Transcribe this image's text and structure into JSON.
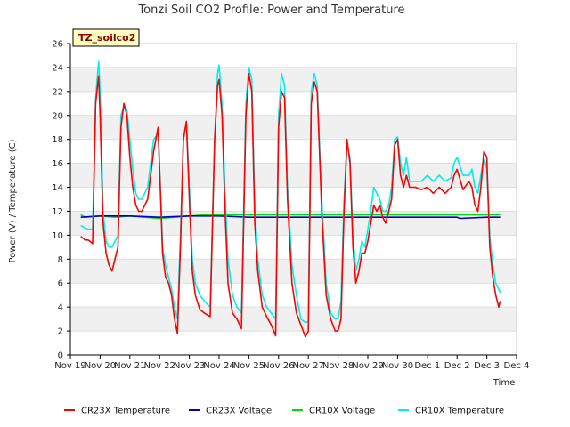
{
  "chart_data": {
    "type": "line",
    "title": "Tonzi Soil CO2 Profile: Power and Temperature",
    "tag": "TZ_soilco2",
    "xlabel": "Time",
    "ylabel": "Power (V) / Temperature (C)",
    "xlim": [
      0,
      15
    ],
    "ylim": [
      0,
      26
    ],
    "x_ticks": [
      "Nov 19",
      "Nov 20",
      "Nov 21",
      "Nov 22",
      "Nov 23",
      "Nov 24",
      "Nov 25",
      "Nov 26",
      "Nov 27",
      "Nov 28",
      "Nov 29",
      "Nov 30",
      "Dec 1",
      "Dec 2",
      "Dec 3",
      "Dec 4"
    ],
    "y_ticks": [
      0,
      2,
      4,
      6,
      8,
      10,
      12,
      14,
      16,
      18,
      20,
      22,
      24,
      26
    ],
    "grid": "horizontal bands",
    "legend_position": "bottom",
    "series": [
      {
        "name": "CR23X Temperature",
        "color": "#ff0000",
        "x": [
          0.35,
          0.5,
          0.6,
          0.75,
          0.85,
          0.95,
          1.0,
          1.1,
          1.2,
          1.3,
          1.4,
          1.5,
          1.6,
          1.7,
          1.8,
          1.9,
          2.0,
          2.1,
          2.2,
          2.3,
          2.4,
          2.6,
          2.8,
          2.95,
          3.05,
          3.1,
          3.2,
          3.3,
          3.4,
          3.5,
          3.6,
          3.7,
          3.8,
          3.9,
          4.0,
          4.1,
          4.2,
          4.35,
          4.5,
          4.7,
          4.85,
          4.95,
          5.0,
          5.1,
          5.2,
          5.3,
          5.45,
          5.6,
          5.75,
          5.9,
          6.0,
          6.1,
          6.2,
          6.3,
          6.45,
          6.6,
          6.75,
          6.9,
          7.0,
          7.1,
          7.2,
          7.3,
          7.45,
          7.6,
          7.75,
          7.9,
          8.0,
          8.1,
          8.2,
          8.3,
          8.45,
          8.6,
          8.75,
          8.9,
          9.0,
          9.1,
          9.2,
          9.3,
          9.4,
          9.5,
          9.6,
          9.7,
          9.8,
          9.9,
          10.0,
          10.1,
          10.2,
          10.3,
          10.4,
          10.5,
          10.6,
          10.7,
          10.8,
          10.9,
          11.0,
          11.1,
          11.2,
          11.3,
          11.4,
          11.5,
          11.6,
          11.8,
          12.0,
          12.2,
          12.4,
          12.6,
          12.8,
          12.9,
          13.0,
          13.2,
          13.4,
          13.5,
          13.6,
          13.7,
          13.8,
          13.9,
          14.0,
          14.1,
          14.2,
          14.3,
          14.4,
          14.45
        ],
        "values": [
          9.9,
          9.6,
          9.6,
          9.3,
          21.0,
          23.3,
          20.0,
          11.0,
          8.5,
          7.5,
          7.0,
          8.0,
          9.0,
          19.0,
          21.0,
          20.0,
          16.5,
          14.0,
          12.5,
          12.0,
          12.0,
          13.0,
          17.0,
          19.0,
          12.0,
          8.5,
          6.5,
          6.0,
          5.0,
          3.0,
          1.8,
          9.0,
          18.0,
          19.5,
          13.0,
          7.0,
          5.0,
          3.8,
          3.5,
          3.2,
          18.0,
          22.5,
          23.0,
          20.0,
          12.0,
          6.0,
          3.5,
          3.0,
          2.2,
          20.0,
          23.5,
          22.0,
          11.0,
          7.0,
          4.0,
          3.2,
          2.5,
          1.6,
          19.0,
          22.0,
          21.5,
          13.0,
          6.0,
          3.5,
          2.5,
          1.5,
          2.0,
          21.0,
          22.8,
          22.0,
          12.0,
          5.0,
          3.0,
          2.0,
          2.0,
          3.0,
          12.0,
          18.0,
          16.0,
          9.0,
          6.0,
          7.0,
          8.5,
          8.5,
          9.5,
          11.0,
          12.5,
          12.0,
          12.5,
          11.5,
          11.0,
          12.0,
          13.0,
          17.5,
          18.0,
          15.0,
          14.0,
          15.0,
          14.0,
          14.0,
          14.0,
          13.8,
          14.0,
          13.5,
          14.0,
          13.5,
          14.0,
          15.0,
          15.5,
          13.8,
          14.5,
          14.0,
          12.5,
          12.0,
          14.0,
          17.0,
          16.5,
          9.0,
          6.5,
          5.0,
          4.0,
          4.5
        ]
      },
      {
        "name": "CR23X Voltage",
        "color": "#0000cc",
        "x": [
          0.35,
          1.0,
          2.0,
          3.0,
          4.0,
          5.0,
          6.0,
          7.0,
          8.0,
          9.0,
          10.0,
          11.0,
          12.0,
          13.0,
          13.1,
          14.0,
          14.45
        ],
        "values": [
          11.5,
          11.6,
          11.6,
          11.5,
          11.6,
          11.6,
          11.5,
          11.5,
          11.5,
          11.5,
          11.5,
          11.5,
          11.5,
          11.5,
          11.4,
          11.5,
          11.5
        ]
      },
      {
        "name": "CR10X Voltage",
        "color": "#00dd00",
        "x": [
          0.35,
          0.5,
          1.0,
          1.5,
          2.0,
          2.5,
          3.0,
          3.5,
          4.0,
          4.5,
          5.0,
          6.0,
          7.0,
          8.0,
          9.0,
          10.0,
          11.0,
          12.0,
          13.0,
          14.0,
          14.45
        ],
        "values": [
          11.7,
          11.5,
          11.6,
          11.5,
          11.6,
          11.5,
          11.4,
          11.5,
          11.6,
          11.7,
          11.7,
          11.7,
          11.7,
          11.7,
          11.7,
          11.7,
          11.7,
          11.7,
          11.7,
          11.7,
          11.7
        ]
      },
      {
        "name": "CR10X Temperature",
        "color": "#00eeee",
        "x": [
          0.35,
          0.5,
          0.6,
          0.75,
          0.85,
          0.95,
          1.0,
          1.1,
          1.2,
          1.3,
          1.4,
          1.5,
          1.6,
          1.7,
          1.8,
          1.9,
          2.0,
          2.1,
          2.2,
          2.3,
          2.4,
          2.6,
          2.8,
          2.95,
          3.05,
          3.1,
          3.2,
          3.3,
          3.4,
          3.5,
          3.6,
          3.7,
          3.8,
          3.9,
          4.0,
          4.1,
          4.2,
          4.35,
          4.5,
          4.7,
          4.85,
          4.95,
          5.0,
          5.1,
          5.2,
          5.3,
          5.45,
          5.6,
          5.75,
          5.9,
          6.0,
          6.1,
          6.2,
          6.3,
          6.45,
          6.6,
          6.75,
          6.9,
          7.0,
          7.1,
          7.2,
          7.3,
          7.45,
          7.6,
          7.75,
          7.9,
          8.0,
          8.1,
          8.2,
          8.3,
          8.45,
          8.6,
          8.75,
          8.9,
          9.0,
          9.1,
          9.2,
          9.3,
          9.4,
          9.5,
          9.6,
          9.7,
          9.8,
          9.9,
          10.0,
          10.1,
          10.2,
          10.3,
          10.4,
          10.5,
          10.6,
          10.7,
          10.8,
          10.9,
          11.0,
          11.1,
          11.2,
          11.3,
          11.4,
          11.5,
          11.6,
          11.8,
          12.0,
          12.2,
          12.4,
          12.6,
          12.8,
          12.9,
          13.0,
          13.2,
          13.4,
          13.5,
          13.6,
          13.7,
          13.8,
          13.9,
          14.0,
          14.1,
          14.2,
          14.3,
          14.4,
          14.45
        ],
        "values": [
          10.8,
          10.6,
          10.5,
          10.5,
          21.5,
          24.5,
          22.0,
          12.0,
          9.5,
          9.0,
          9.0,
          9.5,
          10.0,
          20.0,
          20.8,
          20.5,
          18.0,
          15.5,
          13.5,
          13.0,
          13.0,
          14.0,
          18.0,
          18.5,
          12.5,
          9.0,
          7.5,
          6.5,
          5.5,
          4.0,
          3.0,
          10.0,
          18.0,
          19.5,
          14.0,
          8.0,
          6.0,
          5.0,
          4.5,
          4.0,
          18.0,
          23.5,
          24.2,
          21.0,
          13.5,
          8.0,
          5.0,
          4.0,
          3.5,
          21.0,
          24.0,
          23.0,
          12.5,
          8.0,
          5.0,
          4.0,
          3.5,
          3.0,
          20.0,
          23.5,
          22.5,
          14.0,
          7.5,
          5.0,
          3.0,
          2.7,
          2.8,
          22.0,
          23.5,
          22.5,
          13.0,
          6.0,
          3.5,
          3.0,
          3.0,
          4.5,
          13.0,
          17.5,
          16.5,
          10.0,
          7.0,
          8.0,
          9.5,
          9.0,
          10.5,
          12.0,
          14.0,
          13.5,
          13.0,
          12.0,
          12.0,
          12.5,
          14.0,
          18.0,
          18.2,
          16.0,
          15.0,
          16.5,
          14.5,
          14.5,
          14.5,
          14.5,
          15.0,
          14.5,
          15.0,
          14.5,
          14.8,
          16.0,
          16.5,
          15.0,
          15.0,
          15.5,
          14.0,
          13.5,
          15.0,
          16.5,
          15.5,
          10.0,
          7.5,
          6.0,
          5.5,
          5.2
        ]
      }
    ]
  }
}
